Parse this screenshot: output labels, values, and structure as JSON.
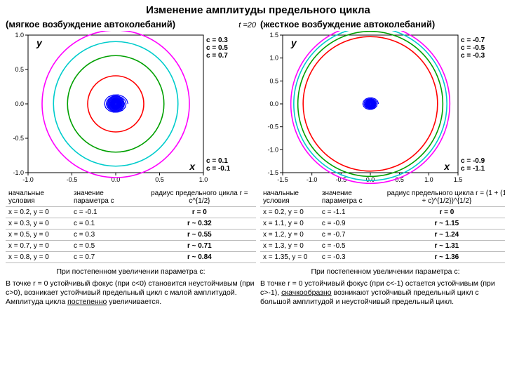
{
  "title": "Изменение амплитуды предельного цикла",
  "t_label": "t =20",
  "left": {
    "subtitle": "(мягкое возбуждение автоколебаний)",
    "plot": {
      "type": "scatter",
      "xlim": [
        -1.0,
        1.0
      ],
      "ylim": [
        -1.0,
        1.0
      ],
      "xticks": [
        -1.0,
        -0.5,
        0.0,
        0.5,
        1.0
      ],
      "yticks": [
        -1.0,
        -0.5,
        0.0,
        0.5,
        1.0
      ],
      "xlabel": "x",
      "ylabel": "y",
      "background": "#ffffff",
      "axis_color": "#000000",
      "curves": [
        {
          "r": 0.84,
          "color": "#ff00ff",
          "label": "c = 0.7"
        },
        {
          "r": 0.71,
          "color": "#00cccc",
          "label": "c = 0.5"
        },
        {
          "r": 0.55,
          "color": "#00a000",
          "label": "c = 0.3"
        },
        {
          "r": 0.32,
          "color": "#ff0000",
          "label": "c = 0.1"
        },
        {
          "r": 0.1,
          "color": "#0000ff",
          "label": "c = -0.1",
          "fill": "#0000ff",
          "spiral": true
        }
      ],
      "label_fontsize": 10,
      "tick_fontsize": 9
    },
    "table": {
      "columns": [
        "начальные условия",
        "значение параметра c",
        "радиус предельного цикла r = c^{1/2}"
      ],
      "rows": [
        [
          "x = 0.2, y = 0",
          "c = -0.1",
          "r = 0"
        ],
        [
          "x = 0.3, y = 0",
          "c = 0.1",
          "r ~ 0.32"
        ],
        [
          "x = 0.5, y = 0",
          "c = 0.3",
          "r ~ 0.55"
        ],
        [
          "x = 0.7, y = 0",
          "c = 0.5",
          "r ~ 0.71"
        ],
        [
          "x = 0.8, y = 0",
          "c = 0.7",
          "r ~ 0.84"
        ]
      ]
    },
    "note_lead": "При постепенном увеличении параметра c:",
    "note_body": "В точке r = 0 устойчивый фокус (при c<0) становится неустойчивым (при c>0), возникает устойчивый предельный цикл с малой амплитудой. Амплитуда цикла ",
    "note_emph": "постепенно",
    "note_tail": " увеличивается."
  },
  "right": {
    "subtitle": "(жесткое возбуждение автоколебаний)",
    "plot": {
      "type": "scatter",
      "xlim": [
        -1.5,
        1.5
      ],
      "ylim": [
        -1.5,
        1.5
      ],
      "xticks": [
        -1.5,
        -1.0,
        -0.5,
        0.0,
        0.5,
        1.0,
        1.5
      ],
      "yticks": [
        -1.5,
        -1.0,
        -0.5,
        0.0,
        0.5,
        1.0,
        1.5
      ],
      "xlabel": "x",
      "ylabel": "y",
      "background": "#ffffff",
      "axis_color": "#000000",
      "curves": [
        {
          "r": 1.36,
          "color": "#ff00ff",
          "label": "c = -0.3"
        },
        {
          "r": 1.31,
          "color": "#00cccc",
          "label": "c = -0.5"
        },
        {
          "r": 1.24,
          "color": "#00a000",
          "label": "c = -0.7"
        },
        {
          "r": 1.15,
          "color": "#ff0000",
          "label": "c = -0.9"
        },
        {
          "r": 0.0,
          "color": "#0000ff",
          "label": "c = -1.1",
          "spiral": true
        }
      ],
      "label_fontsize": 10,
      "tick_fontsize": 9
    },
    "table": {
      "columns": [
        "начальные условия",
        "значение параметра c",
        "радиус предельного цикла r = (1 + (1 + c)^{1/2})^{1/2}"
      ],
      "rows": [
        [
          "x = 0.2, y = 0",
          "c = -1.1",
          "r = 0"
        ],
        [
          "x = 1.1, y = 0",
          "c = -0.9",
          "r ~ 1.15"
        ],
        [
          "x = 1.2, y = 0",
          "c = -0.7",
          "r ~ 1.24"
        ],
        [
          "x = 1.3, y = 0",
          "c = -0.5",
          "r ~ 1.31"
        ],
        [
          "x = 1.35, y = 0",
          "c = -0.3",
          "r ~ 1.36"
        ]
      ]
    },
    "note_lead": "При постепенном увеличении параметра c:",
    "note_body": "В точке r = 0 устойчивый фокус (при c<-1) остается устойчивым (при c>-1), ",
    "note_emph": "скачкообразно",
    "note_tail": " возникают устойчивый предельный цикл с большой амплитудой и неустойчивый предельный цикл."
  }
}
